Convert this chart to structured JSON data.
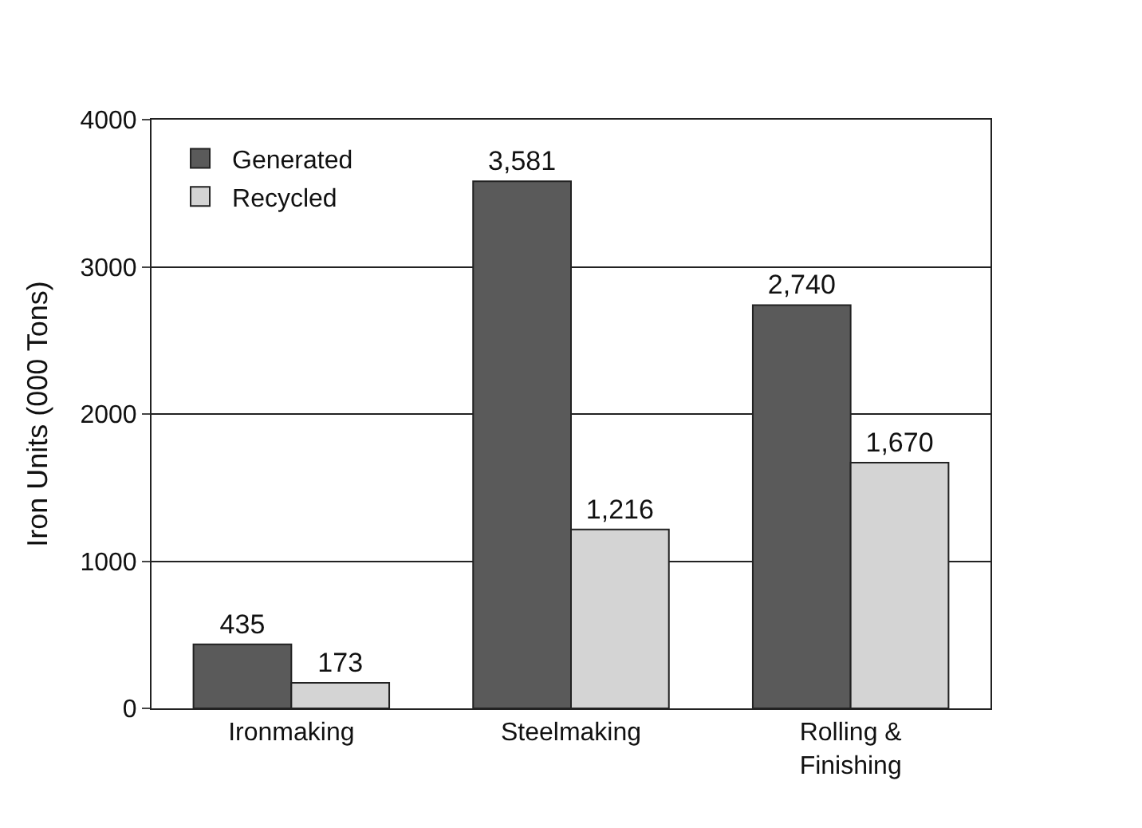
{
  "chart_data": {
    "type": "bar",
    "ylabel": "Iron Units (000 Tons)",
    "categories": [
      "Ironmaking",
      "Steelmaking",
      "Rolling &\nFinishing"
    ],
    "series": [
      {
        "name": "Generated",
        "color": "#5a5a5a",
        "values": [
          435,
          3581,
          2740
        ],
        "value_labels": [
          "435",
          "3,581",
          "2,740"
        ]
      },
      {
        "name": "Recycled",
        "color": "#d4d4d4",
        "values": [
          173,
          1216,
          1670
        ],
        "value_labels": [
          "173",
          "1,216",
          "1,670"
        ]
      }
    ],
    "ylim": [
      0,
      4000
    ],
    "yticks": [
      0,
      1000,
      2000,
      3000,
      4000
    ],
    "grid": "y",
    "legend": "top left"
  }
}
